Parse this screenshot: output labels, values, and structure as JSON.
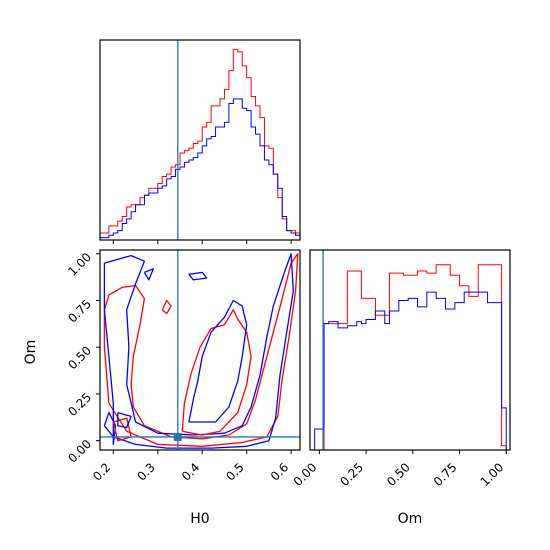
{
  "chart_data": [
    {
      "panel": "H0 marginal",
      "type": "histogram",
      "xlim": [
        0.17,
        0.62
      ],
      "bins": [
        0.17,
        0.18,
        0.19,
        0.2,
        0.21,
        0.22,
        0.23,
        0.24,
        0.25,
        0.26,
        0.27,
        0.28,
        0.29,
        0.3,
        0.31,
        0.32,
        0.33,
        0.34,
        0.35,
        0.36,
        0.37,
        0.38,
        0.39,
        0.4,
        0.41,
        0.42,
        0.43,
        0.44,
        0.45,
        0.46,
        0.47,
        0.48,
        0.49,
        0.5,
        0.51,
        0.52,
        0.53,
        0.54,
        0.55,
        0.56,
        0.57,
        0.58,
        0.59,
        0.6,
        0.61,
        0.62
      ],
      "series": [
        {
          "color": "#ff0000",
          "values": [
            3,
            3,
            6,
            6,
            8,
            10,
            14,
            15,
            15,
            18,
            19,
            22,
            22,
            24,
            27,
            28,
            31,
            32,
            37,
            38,
            39,
            41,
            42,
            48,
            50,
            57,
            57,
            60,
            64,
            72,
            81,
            80,
            74,
            69,
            61,
            57,
            52,
            40,
            39,
            28,
            18,
            9,
            4,
            4,
            3
          ]
        },
        {
          "color": "#0000ff",
          "values": [
            1,
            1,
            2,
            3,
            4,
            7,
            9,
            12,
            15,
            15,
            19,
            20,
            20,
            22,
            23,
            26,
            27,
            30,
            31,
            33,
            34,
            35,
            37,
            40,
            43,
            44,
            48,
            48,
            50,
            58,
            60,
            60,
            56,
            55,
            48,
            45,
            40,
            34,
            32,
            28,
            22,
            10,
            4,
            3,
            2
          ]
        }
      ],
      "reference_line": 0.345
    },
    {
      "panel": "Om marginal",
      "type": "histogram",
      "xlim": [
        -0.05,
        1.02
      ],
      "bins": [
        -0.05,
        -0.025,
        0.0,
        0.025,
        0.05,
        0.075,
        0.1,
        0.125,
        0.15,
        0.175,
        0.2,
        0.225,
        0.25,
        0.275,
        0.3,
        0.325,
        0.35,
        0.375,
        0.4,
        0.425,
        0.45,
        0.475,
        0.5,
        0.525,
        0.55,
        0.575,
        0.6,
        0.625,
        0.65,
        0.675,
        0.7,
        0.725,
        0.75,
        0.775,
        0.8,
        0.825,
        0.85,
        0.875,
        0.9,
        0.925,
        0.95,
        0.975,
        1.0
      ],
      "series": [
        {
          "color": "#ff0000",
          "values": [
            0,
            0,
            0,
            60,
            60,
            60,
            60,
            60,
            85,
            85,
            85,
            72,
            72,
            72,
            64,
            64,
            64,
            84,
            84,
            84,
            83,
            83,
            83,
            85,
            85,
            84,
            84,
            88,
            88,
            88,
            83,
            83,
            78,
            78,
            73,
            73,
            88,
            88,
            88,
            88,
            88,
            2
          ]
        },
        {
          "color": "#0000ff",
          "values": [
            0,
            10,
            10,
            60,
            61,
            61,
            58,
            58,
            59,
            59,
            61,
            60,
            62,
            62,
            66,
            66,
            60,
            66,
            66,
            71,
            71,
            72,
            72,
            68,
            68,
            75,
            75,
            72,
            72,
            67,
            67,
            70,
            70,
            75,
            75,
            75,
            75,
            75,
            70,
            70,
            70,
            20
          ]
        }
      ],
      "reference_line": 0.02
    },
    {
      "panel": "H0 vs Om joint",
      "type": "contour",
      "xlabel": "H0",
      "ylabel": "Om",
      "xlim": [
        0.17,
        0.62
      ],
      "ylim": [
        -0.05,
        1.02
      ],
      "xticks": [
        "0.2",
        "0.3",
        "0.4",
        "0.5",
        "0.6"
      ],
      "yticks": [
        "0.00",
        "0.25",
        "0.50",
        "0.75",
        "1.00"
      ],
      "reference_point": [
        0.345,
        0.02
      ],
      "contours": [
        {
          "color": "#ff0000",
          "points": [
            [
              0.19,
              0.78
            ],
            [
              0.22,
              0.82
            ],
            [
              0.25,
              0.83
            ],
            [
              0.27,
              0.76
            ],
            [
              0.26,
              0.62
            ],
            [
              0.245,
              0.45
            ],
            [
              0.24,
              0.3
            ],
            [
              0.245,
              0.18
            ],
            [
              0.27,
              0.08
            ],
            [
              0.33,
              0.02
            ],
            [
              0.4,
              0.01
            ],
            [
              0.46,
              0.03
            ],
            [
              0.5,
              0.09
            ],
            [
              0.52,
              0.22
            ],
            [
              0.54,
              0.4
            ],
            [
              0.56,
              0.58
            ],
            [
              0.58,
              0.76
            ],
            [
              0.6,
              0.95
            ],
            [
              0.615,
              1.0
            ],
            [
              0.61,
              0.8
            ],
            [
              0.595,
              0.55
            ],
            [
              0.58,
              0.33
            ],
            [
              0.57,
              0.13
            ],
            [
              0.545,
              0.02
            ],
            [
              0.49,
              -0.01
            ],
            [
              0.4,
              -0.03
            ],
            [
              0.3,
              -0.02
            ],
            [
              0.23,
              0.05
            ],
            [
              0.19,
              0.2
            ],
            [
              0.18,
              0.5
            ],
            [
              0.18,
              0.7
            ],
            [
              0.19,
              0.78
            ]
          ]
        },
        {
          "color": "#0000ff",
          "points": [
            [
              0.18,
              0.95
            ],
            [
              0.24,
              0.99
            ],
            [
              0.27,
              0.96
            ],
            [
              0.25,
              0.84
            ],
            [
              0.23,
              0.7
            ],
            [
              0.235,
              0.5
            ],
            [
              0.23,
              0.3
            ],
            [
              0.25,
              0.1
            ],
            [
              0.3,
              0.04
            ],
            [
              0.38,
              0.03
            ],
            [
              0.45,
              0.04
            ],
            [
              0.49,
              0.08
            ],
            [
              0.51,
              0.18
            ],
            [
              0.53,
              0.35
            ],
            [
              0.545,
              0.55
            ],
            [
              0.56,
              0.72
            ],
            [
              0.585,
              0.9
            ],
            [
              0.6,
              1.0
            ],
            [
              0.605,
              0.8
            ],
            [
              0.59,
              0.58
            ],
            [
              0.575,
              0.35
            ],
            [
              0.565,
              0.12
            ],
            [
              0.55,
              0.0
            ],
            [
              0.5,
              -0.03
            ],
            [
              0.42,
              -0.04
            ],
            [
              0.32,
              -0.04
            ],
            [
              0.25,
              -0.02
            ],
            [
              0.2,
              0.02
            ],
            [
              0.18,
              0.08
            ],
            [
              0.19,
              0.15
            ],
            [
              0.205,
              0.08
            ],
            [
              0.2,
              -0.02
            ],
            [
              0.2,
              0.2
            ],
            [
              0.19,
              0.45
            ],
            [
              0.18,
              0.7
            ],
            [
              0.18,
              0.95
            ]
          ]
        },
        {
          "color": "#ff0000",
          "points": [
            [
              0.355,
              0.05
            ],
            [
              0.36,
              0.2
            ],
            [
              0.375,
              0.36
            ],
            [
              0.395,
              0.5
            ],
            [
              0.42,
              0.6
            ],
            [
              0.45,
              0.62
            ],
            [
              0.47,
              0.7
            ],
            [
              0.48,
              0.65
            ],
            [
              0.5,
              0.58
            ],
            [
              0.51,
              0.45
            ],
            [
              0.5,
              0.3
            ],
            [
              0.48,
              0.15
            ],
            [
              0.44,
              0.05
            ],
            [
              0.4,
              0.03
            ],
            [
              0.355,
              0.05
            ]
          ]
        },
        {
          "color": "#0000ff",
          "points": [
            [
              0.37,
              0.1
            ],
            [
              0.38,
              0.22
            ],
            [
              0.39,
              0.32
            ],
            [
              0.4,
              0.45
            ],
            [
              0.42,
              0.58
            ],
            [
              0.45,
              0.66
            ],
            [
              0.47,
              0.75
            ],
            [
              0.49,
              0.72
            ],
            [
              0.5,
              0.62
            ],
            [
              0.49,
              0.45
            ],
            [
              0.48,
              0.32
            ],
            [
              0.46,
              0.18
            ],
            [
              0.43,
              0.1
            ],
            [
              0.37,
              0.1
            ]
          ]
        },
        {
          "color": "#ff0000",
          "points": [
            [
              0.31,
              0.7
            ],
            [
              0.32,
              0.75
            ],
            [
              0.33,
              0.72
            ],
            [
              0.32,
              0.68
            ],
            [
              0.31,
              0.7
            ]
          ]
        },
        {
          "color": "#0000ff",
          "points": [
            [
              0.37,
              0.89
            ],
            [
              0.4,
              0.9
            ],
            [
              0.41,
              0.87
            ],
            [
              0.38,
              0.86
            ],
            [
              0.37,
              0.89
            ]
          ]
        },
        {
          "color": "#0000ff",
          "points": [
            [
              0.27,
              0.9
            ],
            [
              0.29,
              0.92
            ],
            [
              0.28,
              0.86
            ],
            [
              0.27,
              0.9
            ]
          ]
        },
        {
          "color": "#ff0000",
          "points": [
            [
              0.2,
              0.1
            ],
            [
              0.23,
              0.12
            ],
            [
              0.24,
              0.02
            ],
            [
              0.21,
              0.0
            ],
            [
              0.2,
              0.1
            ]
          ]
        },
        {
          "color": "#0000ff",
          "points": [
            [
              0.21,
              0.15
            ],
            [
              0.24,
              0.13
            ],
            [
              0.23,
              0.07
            ],
            [
              0.21,
              0.08
            ],
            [
              0.21,
              0.15
            ]
          ]
        }
      ]
    }
  ]
}
